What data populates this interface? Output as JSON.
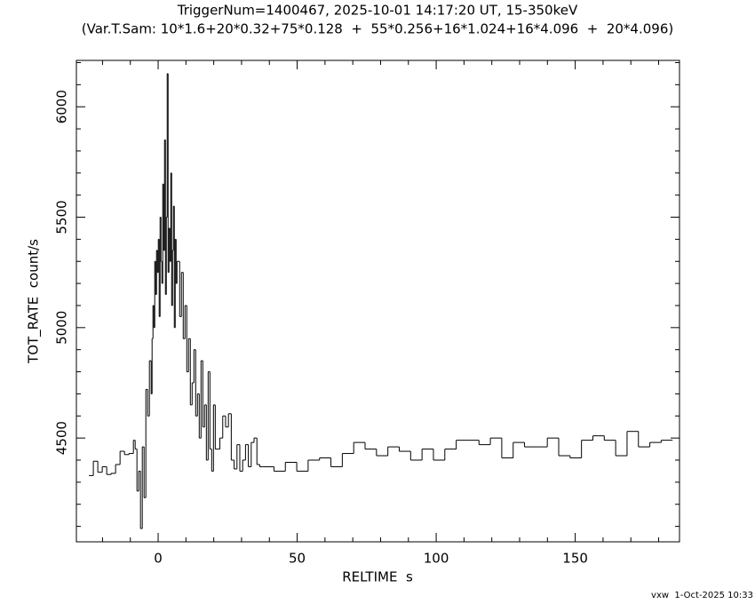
{
  "chart_data": {
    "type": "histogram",
    "title": "TriggerNum=1400467, 2025-10-01 14:17:20 UT, 15-350keV",
    "subtitle": "(Var.T.Sam: 10*1.6+20*0.32+75*0.128  +  55*0.256+16*1.024+16*4.096  +  20*4.096)",
    "x_label": "RELTIME  s",
    "y_label": "TOT_RATE  count/s",
    "footer": "vxw  1-Oct-2025 10:33",
    "color": "#000000",
    "xlim": [
      -29.4,
      187.5
    ],
    "ylim": [
      4030,
      6210
    ],
    "xticks": [
      0,
      50,
      100,
      150
    ],
    "yticks": [
      4500,
      5000,
      5500,
      6000
    ],
    "xminor_ticks": [
      -20,
      -10,
      10,
      20,
      30,
      40,
      60,
      70,
      80,
      90,
      110,
      120,
      130,
      140,
      160,
      170,
      180
    ],
    "yminor_ticks": [
      4100,
      4200,
      4300,
      4400,
      4600,
      4700,
      4800,
      4900,
      5100,
      5200,
      5300,
      5400,
      5600,
      5700,
      5800,
      5900,
      6100,
      6200
    ],
    "bins": [
      -24.9,
      -23.3,
      -21.7,
      -20.1,
      -18.5,
      -16.9,
      -15.3,
      -13.7,
      -12.1,
      -10.5,
      -8.9,
      -8.26,
      -7.62,
      -6.98,
      -6.34,
      -5.7,
      -5.06,
      -4.42,
      -3.78,
      -3.14,
      -2.5,
      -2.18,
      -1.86,
      -1.54,
      -1.22,
      -0.9,
      -0.58,
      -0.26,
      0.06,
      0.38,
      0.7,
      1.02,
      1.34,
      1.66,
      1.98,
      2.3,
      2.62,
      2.94,
      3.26,
      3.58,
      3.9,
      4.22,
      4.54,
      4.86,
      5.18,
      5.5,
      5.82,
      6.14,
      6.46,
      6.78,
      7.1,
      7.74,
      8.38,
      9.02,
      9.66,
      10.3,
      10.94,
      11.58,
      12.22,
      12.86,
      13.5,
      14.14,
      14.78,
      15.42,
      16.06,
      16.7,
      17.34,
      17.98,
      18.62,
      19.26,
      19.9,
      20.54,
      21.18,
      22.2,
      23.23,
      24.25,
      25.28,
      26.3,
      27.32,
      28.35,
      29.37,
      30.4,
      31.42,
      32.44,
      33.47,
      34.49,
      35.52,
      36.54,
      37.56,
      41.66,
      45.75,
      49.85,
      53.94,
      58.04,
      62.14,
      66.23,
      70.33,
      74.42,
      78.52,
      82.62,
      86.71,
      90.81,
      94.9,
      99.0,
      103.1,
      107.2,
      111.29,
      115.39,
      119.48,
      123.58,
      127.68,
      131.77,
      135.87,
      139.96,
      144.06,
      148.16,
      152.25,
      156.35,
      160.44,
      164.54,
      168.64,
      172.73,
      176.83,
      180.92,
      185.02
    ],
    "values": [
      4330,
      4395,
      4345,
      4370,
      4335,
      4340,
      4380,
      4440,
      4425,
      4430,
      4490,
      4450,
      4260,
      4350,
      4090,
      4460,
      4230,
      4720,
      4600,
      4850,
      4700,
      4950,
      5100,
      5000,
      5300,
      5150,
      5350,
      5250,
      5400,
      5050,
      5500,
      5300,
      5200,
      5650,
      5350,
      5850,
      5150,
      5500,
      6150,
      5250,
      5450,
      5300,
      5700,
      5100,
      5350,
      5550,
      5000,
      5400,
      5200,
      5300,
      5300,
      5050,
      5250,
      4950,
      5100,
      4800,
      4950,
      4650,
      4750,
      4900,
      4600,
      4700,
      4500,
      4850,
      4550,
      4650,
      4400,
      4800,
      4450,
      4350,
      4650,
      4450,
      4450,
      4500,
      4600,
      4550,
      4610,
      4400,
      4360,
      4470,
      4350,
      4400,
      4470,
      4370,
      4480,
      4500,
      4380,
      4370,
      4370,
      4350,
      4390,
      4350,
      4400,
      4410,
      4370,
      4430,
      4480,
      4450,
      4420,
      4460,
      4440,
      4400,
      4450,
      4400,
      4450,
      4490,
      4490,
      4470,
      4500,
      4410,
      4480,
      4460,
      4460,
      4500,
      4420,
      4410,
      4490,
      4510,
      4490,
      4420,
      4530,
      4460,
      4480,
      4490
    ]
  }
}
